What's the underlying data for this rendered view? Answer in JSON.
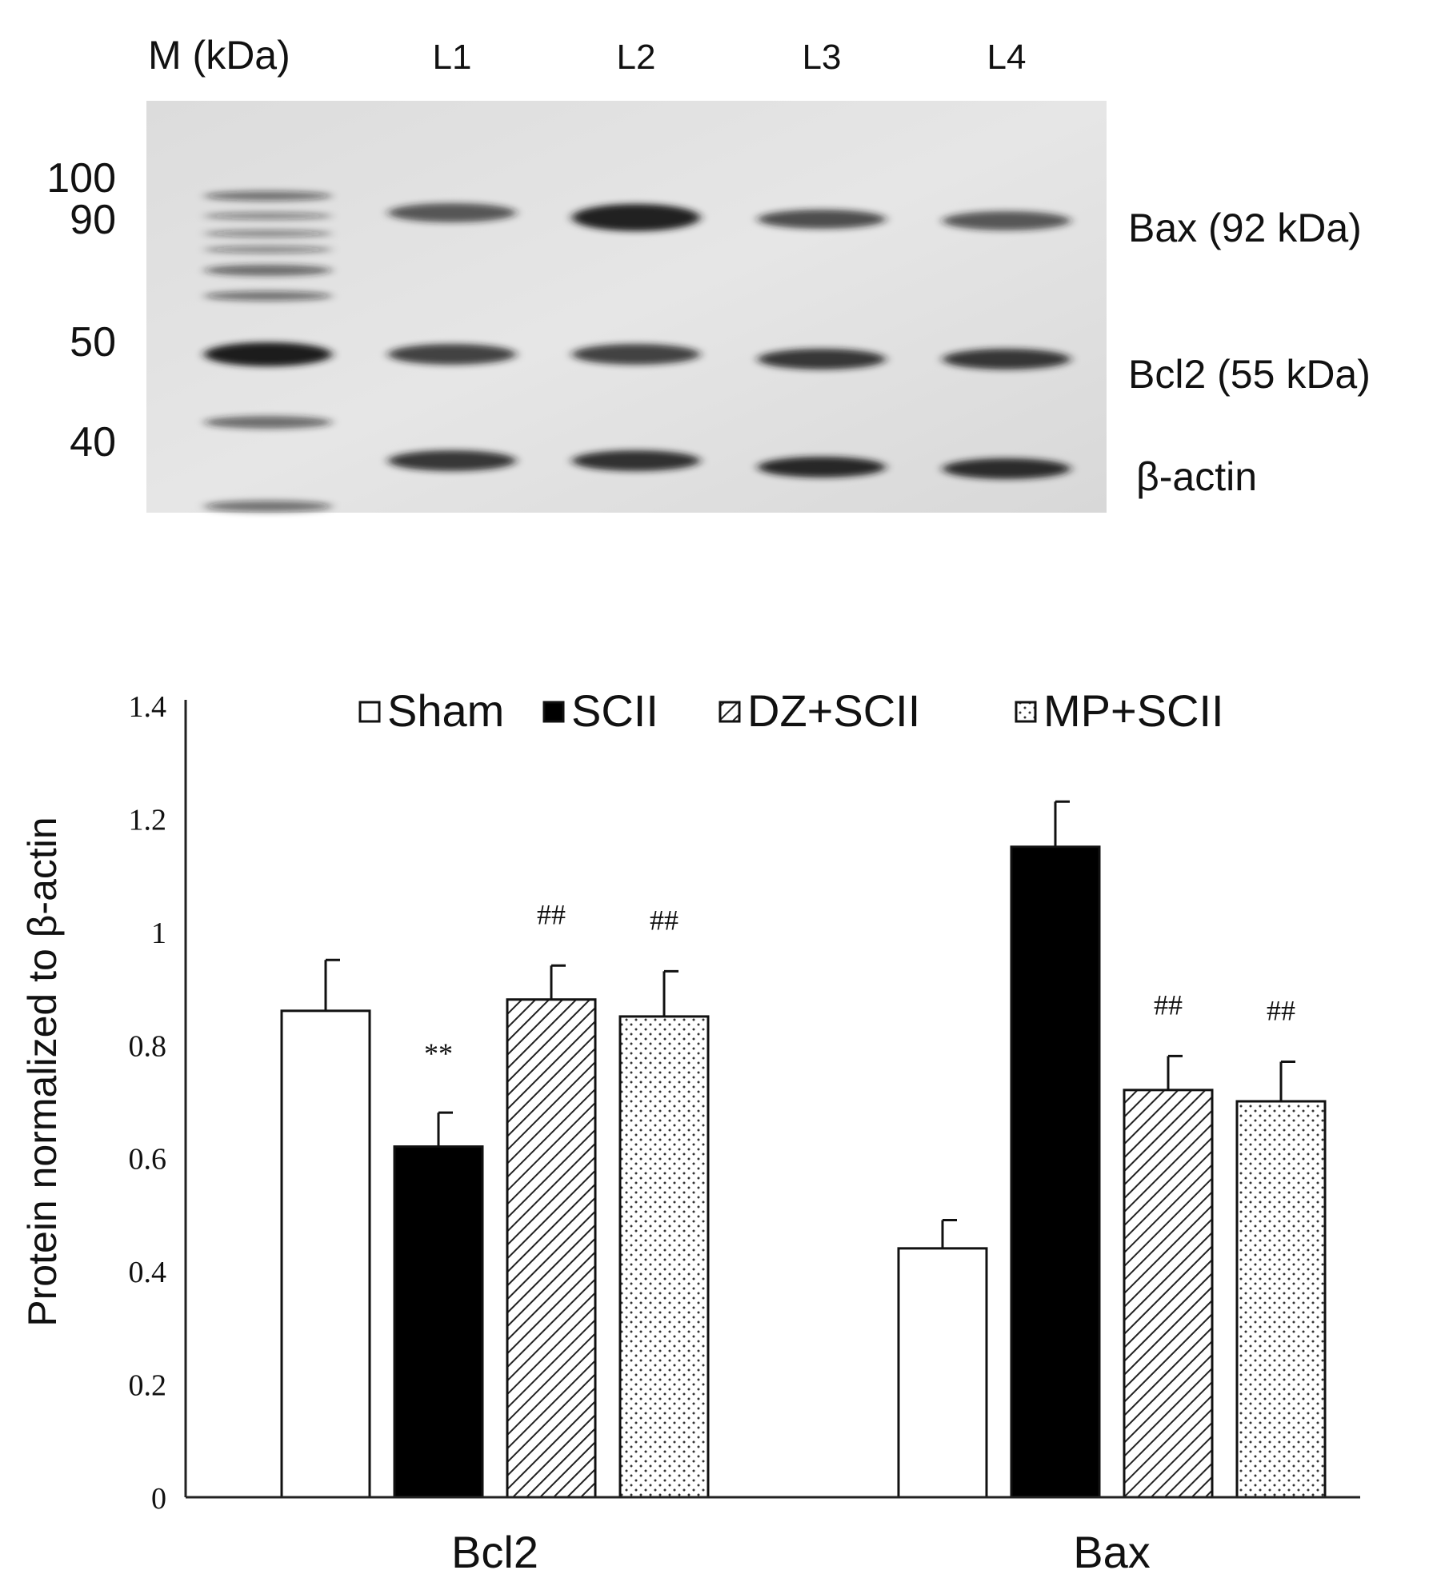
{
  "blot": {
    "marker_header": "M (kDa)",
    "lane_labels": [
      "L1",
      "L2",
      "L3",
      "L4"
    ],
    "marker_labels": [
      "100",
      "90",
      "50",
      "40"
    ],
    "band_labels": [
      "Bax (92 kDa)",
      "Bcl2 (55 kDa)",
      "β-actin"
    ]
  },
  "chart_data": {
    "type": "bar",
    "categories": [
      "Bcl2",
      "Bax"
    ],
    "ylabel": "Protein normalized to β-actin",
    "ylim": [
      0,
      1.4
    ],
    "yticks": [
      "0",
      "0.2",
      "0.4",
      "0.6",
      "0.8",
      "1",
      "1.2",
      "1.4"
    ],
    "legend_position": "top",
    "series": [
      {
        "name": "Sham",
        "pattern": "white",
        "values": [
          0.86,
          0.44
        ],
        "errors": [
          0.09,
          0.05
        ],
        "annotations": [
          "",
          ""
        ]
      },
      {
        "name": "SCII",
        "pattern": "black",
        "values": [
          0.62,
          1.15
        ],
        "errors": [
          0.06,
          0.08
        ],
        "annotations": [
          "**",
          ""
        ]
      },
      {
        "name": "DZ+SCII",
        "pattern": "hatch",
        "values": [
          0.88,
          0.72
        ],
        "errors": [
          0.06,
          0.06
        ],
        "annotations": [
          "##",
          "##"
        ]
      },
      {
        "name": "MP+SCII",
        "pattern": "dots",
        "values": [
          0.85,
          0.7
        ],
        "errors": [
          0.08,
          0.07
        ],
        "annotations": [
          "##",
          "##"
        ]
      }
    ]
  }
}
